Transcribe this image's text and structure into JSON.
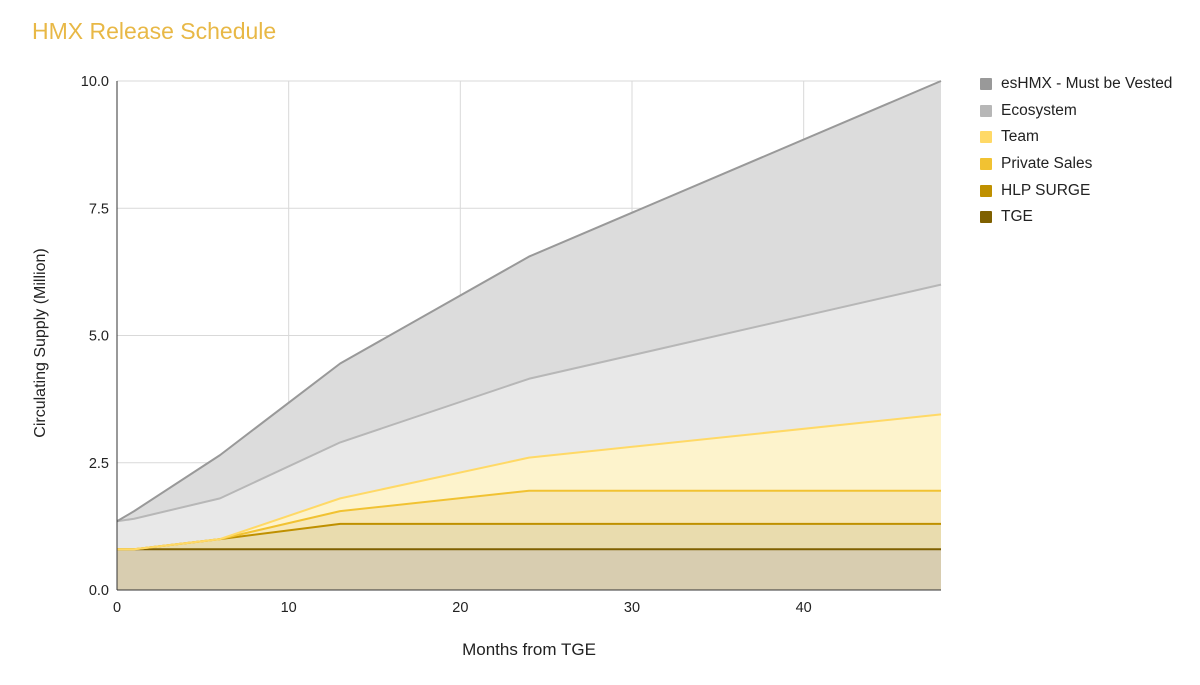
{
  "chart_data": {
    "type": "area",
    "stacked": true,
    "title": "HMX Release Schedule",
    "xlabel": "Months from TGE",
    "ylabel": "Circulating Supply (Million)",
    "xlim": [
      0,
      48
    ],
    "ylim": [
      0,
      10
    ],
    "x_ticks": [
      0,
      10,
      20,
      30,
      40
    ],
    "x_tick_labels": [
      "0",
      "10",
      "20",
      "30",
      "40"
    ],
    "y_ticks": [
      0,
      2.5,
      5,
      7.5,
      10
    ],
    "y_tick_labels": [
      "0.0",
      "2.5",
      "5.0",
      "7.5",
      "10.0"
    ],
    "grid": true,
    "legend_position": "right",
    "x": [
      0,
      1,
      6,
      13,
      24,
      48
    ],
    "series": [
      {
        "name": "TGE",
        "color": "#7f6000",
        "fill": "#d8cdb0",
        "cumulative": [
          0.8,
          0.8,
          0.8,
          0.8,
          0.8,
          0.8
        ]
      },
      {
        "name": "HLP SURGE",
        "color": "#bf9000",
        "fill": "#e9dcae",
        "cumulative": [
          0.8,
          0.8,
          1.0,
          1.3,
          1.3,
          1.3
        ]
      },
      {
        "name": "Private Sales",
        "color": "#f1c232",
        "fill": "#f7e8b8",
        "cumulative": [
          0.8,
          0.8,
          1.0,
          1.55,
          1.95,
          1.95
        ]
      },
      {
        "name": "Team",
        "color": "#ffd966",
        "fill": "#fdf3cc",
        "cumulative": [
          0.8,
          0.8,
          1.0,
          1.8,
          2.6,
          3.45
        ]
      },
      {
        "name": "Ecosystem",
        "color": "#b7b7b7",
        "fill": "#e8e8e8",
        "cumulative": [
          1.35,
          1.4,
          1.8,
          2.9,
          4.15,
          6.0
        ]
      },
      {
        "name": "esHMX - Must be Vested",
        "color": "#999999",
        "fill": "#dcdcdc",
        "cumulative": [
          1.35,
          1.55,
          2.65,
          4.45,
          6.55,
          10.0
        ]
      }
    ],
    "legend_order": [
      "esHMX - Must be Vested",
      "Ecosystem",
      "Team",
      "Private Sales",
      "HLP SURGE",
      "TGE"
    ]
  }
}
